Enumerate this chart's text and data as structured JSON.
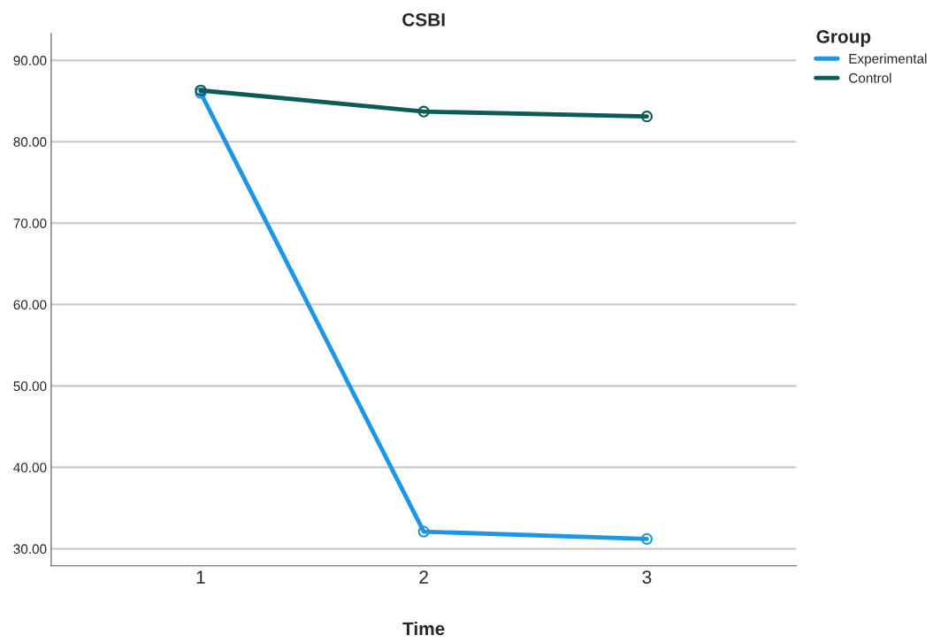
{
  "chart_data": {
    "type": "line",
    "title": "CSBI",
    "xlabel": "Time",
    "categories": [
      "1",
      "2",
      "3"
    ],
    "series": [
      {
        "name": "Experimental",
        "color": "#1e96e6",
        "values": [
          86.0,
          32.1,
          31.2
        ]
      },
      {
        "name": "Control",
        "color": "#0b5c56",
        "values": [
          86.3,
          83.7,
          83.1
        ]
      }
    ],
    "ylim": [
      27.9,
      93.3
    ],
    "yticks": [
      {
        "value": 30,
        "label": "30.00"
      },
      {
        "value": 40,
        "label": "40.00"
      },
      {
        "value": 50,
        "label": "50.00"
      },
      {
        "value": 60,
        "label": "60.00"
      },
      {
        "value": 70,
        "label": "70.00"
      },
      {
        "value": 80,
        "label": "80.00"
      },
      {
        "value": 90,
        "label": "90.00"
      }
    ],
    "grid": "y",
    "legend": "top right",
    "legend_title": "Group",
    "marker": "circle",
    "line_style": "solid"
  }
}
